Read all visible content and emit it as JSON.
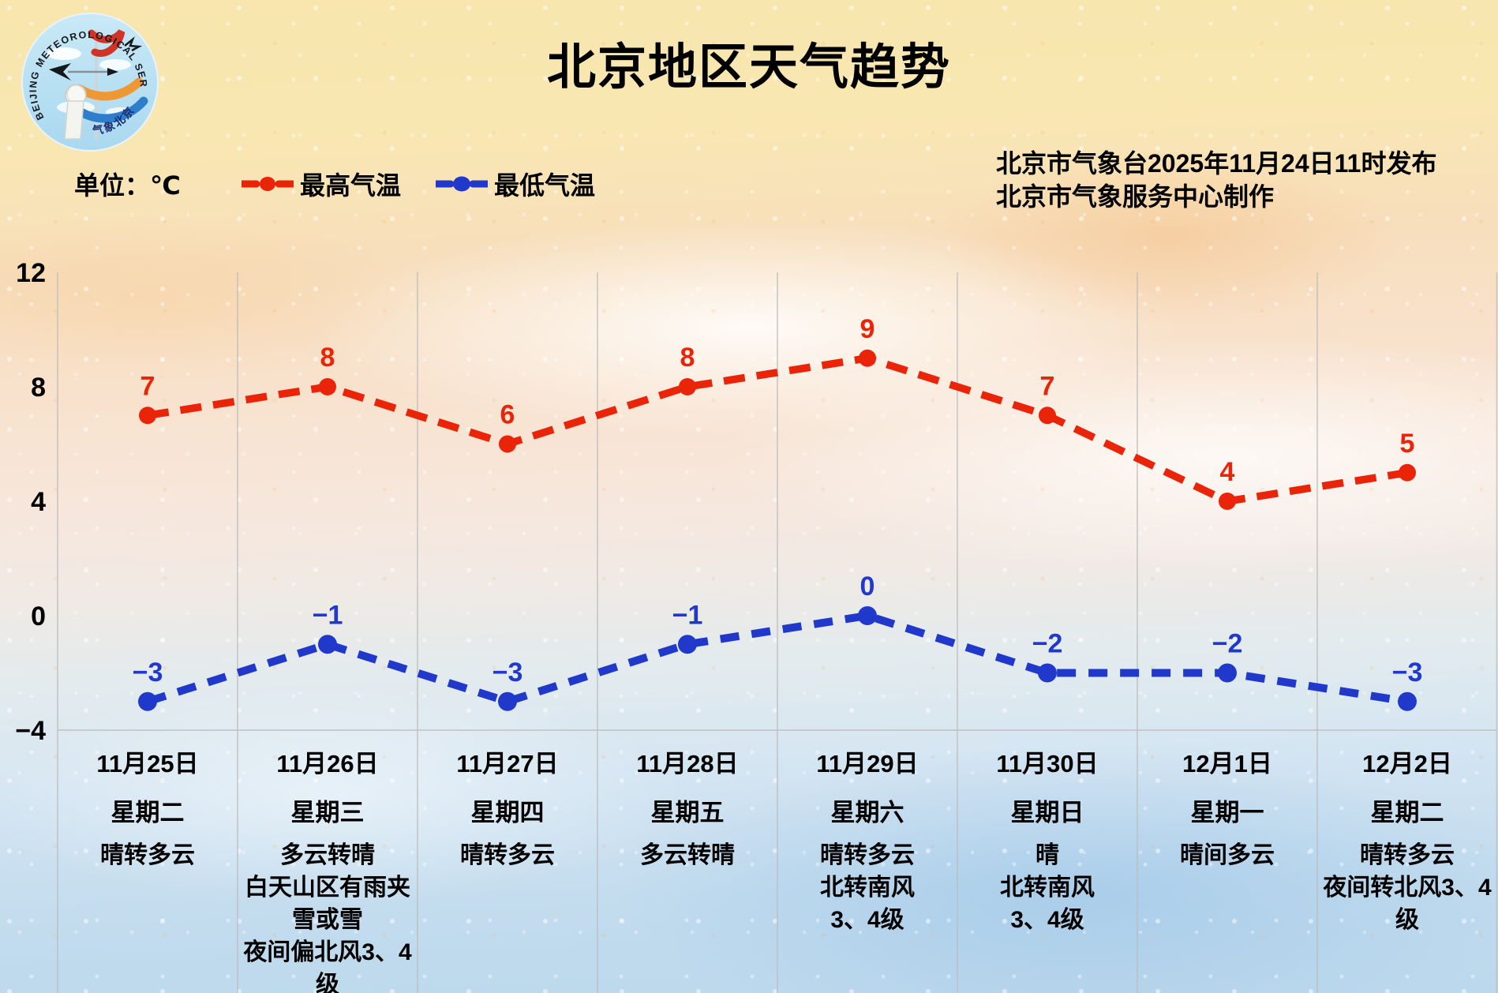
{
  "header": {
    "title": "北京地区天气趋势",
    "publisher_line1": "北京市气象台2025年11月24日11时发布",
    "publisher_line2": "北京市气象服务中心制作",
    "logo": {
      "ring_text": "BEIJING METEOROLOGICAL SERVICE",
      "bottom_text": "气象北京"
    }
  },
  "legend": {
    "unit_label": "单位：℃",
    "max_label": "最高气温",
    "min_label": "最低气温"
  },
  "colors": {
    "max_line": "#ea2408",
    "min_line": "#2039cb",
    "grid": "#bdbdbd",
    "text": "#000000"
  },
  "chart_data": {
    "type": "line",
    "title": "北京地区天气趋势",
    "unit": "℃",
    "categories": [
      "11月25日",
      "11月26日",
      "11月27日",
      "11月28日",
      "11月29日",
      "11月30日",
      "12月1日",
      "12月2日"
    ],
    "weekdays": [
      "星期二",
      "星期三",
      "星期四",
      "星期五",
      "星期六",
      "星期日",
      "星期一",
      "星期二"
    ],
    "weather_lines": [
      [
        "晴转多云"
      ],
      [
        "多云转晴",
        "白天山区有雨夹",
        "雪或雪",
        "夜间偏北风3、4",
        "级"
      ],
      [
        "晴转多云"
      ],
      [
        "多云转晴"
      ],
      [
        "晴转多云",
        "北转南风",
        "3、4级"
      ],
      [
        "晴",
        "北转南风",
        "3、4级"
      ],
      [
        "晴间多云"
      ],
      [
        "晴转多云",
        "夜间转北风3、4",
        "级"
      ]
    ],
    "series": [
      {
        "name": "最高气温",
        "color": "#ea2408",
        "values": [
          7,
          8,
          6,
          8,
          9,
          7,
          4,
          5
        ]
      },
      {
        "name": "最低气温",
        "color": "#2039cb",
        "values": [
          -3,
          -1,
          -3,
          -1,
          0,
          -2,
          -2,
          -3
        ]
      }
    ],
    "yticks": [
      12,
      8,
      4,
      0,
      -4
    ],
    "ylim": [
      -4,
      12
    ],
    "grid": "vertical-day-separators",
    "legend_position": "top-left"
  }
}
